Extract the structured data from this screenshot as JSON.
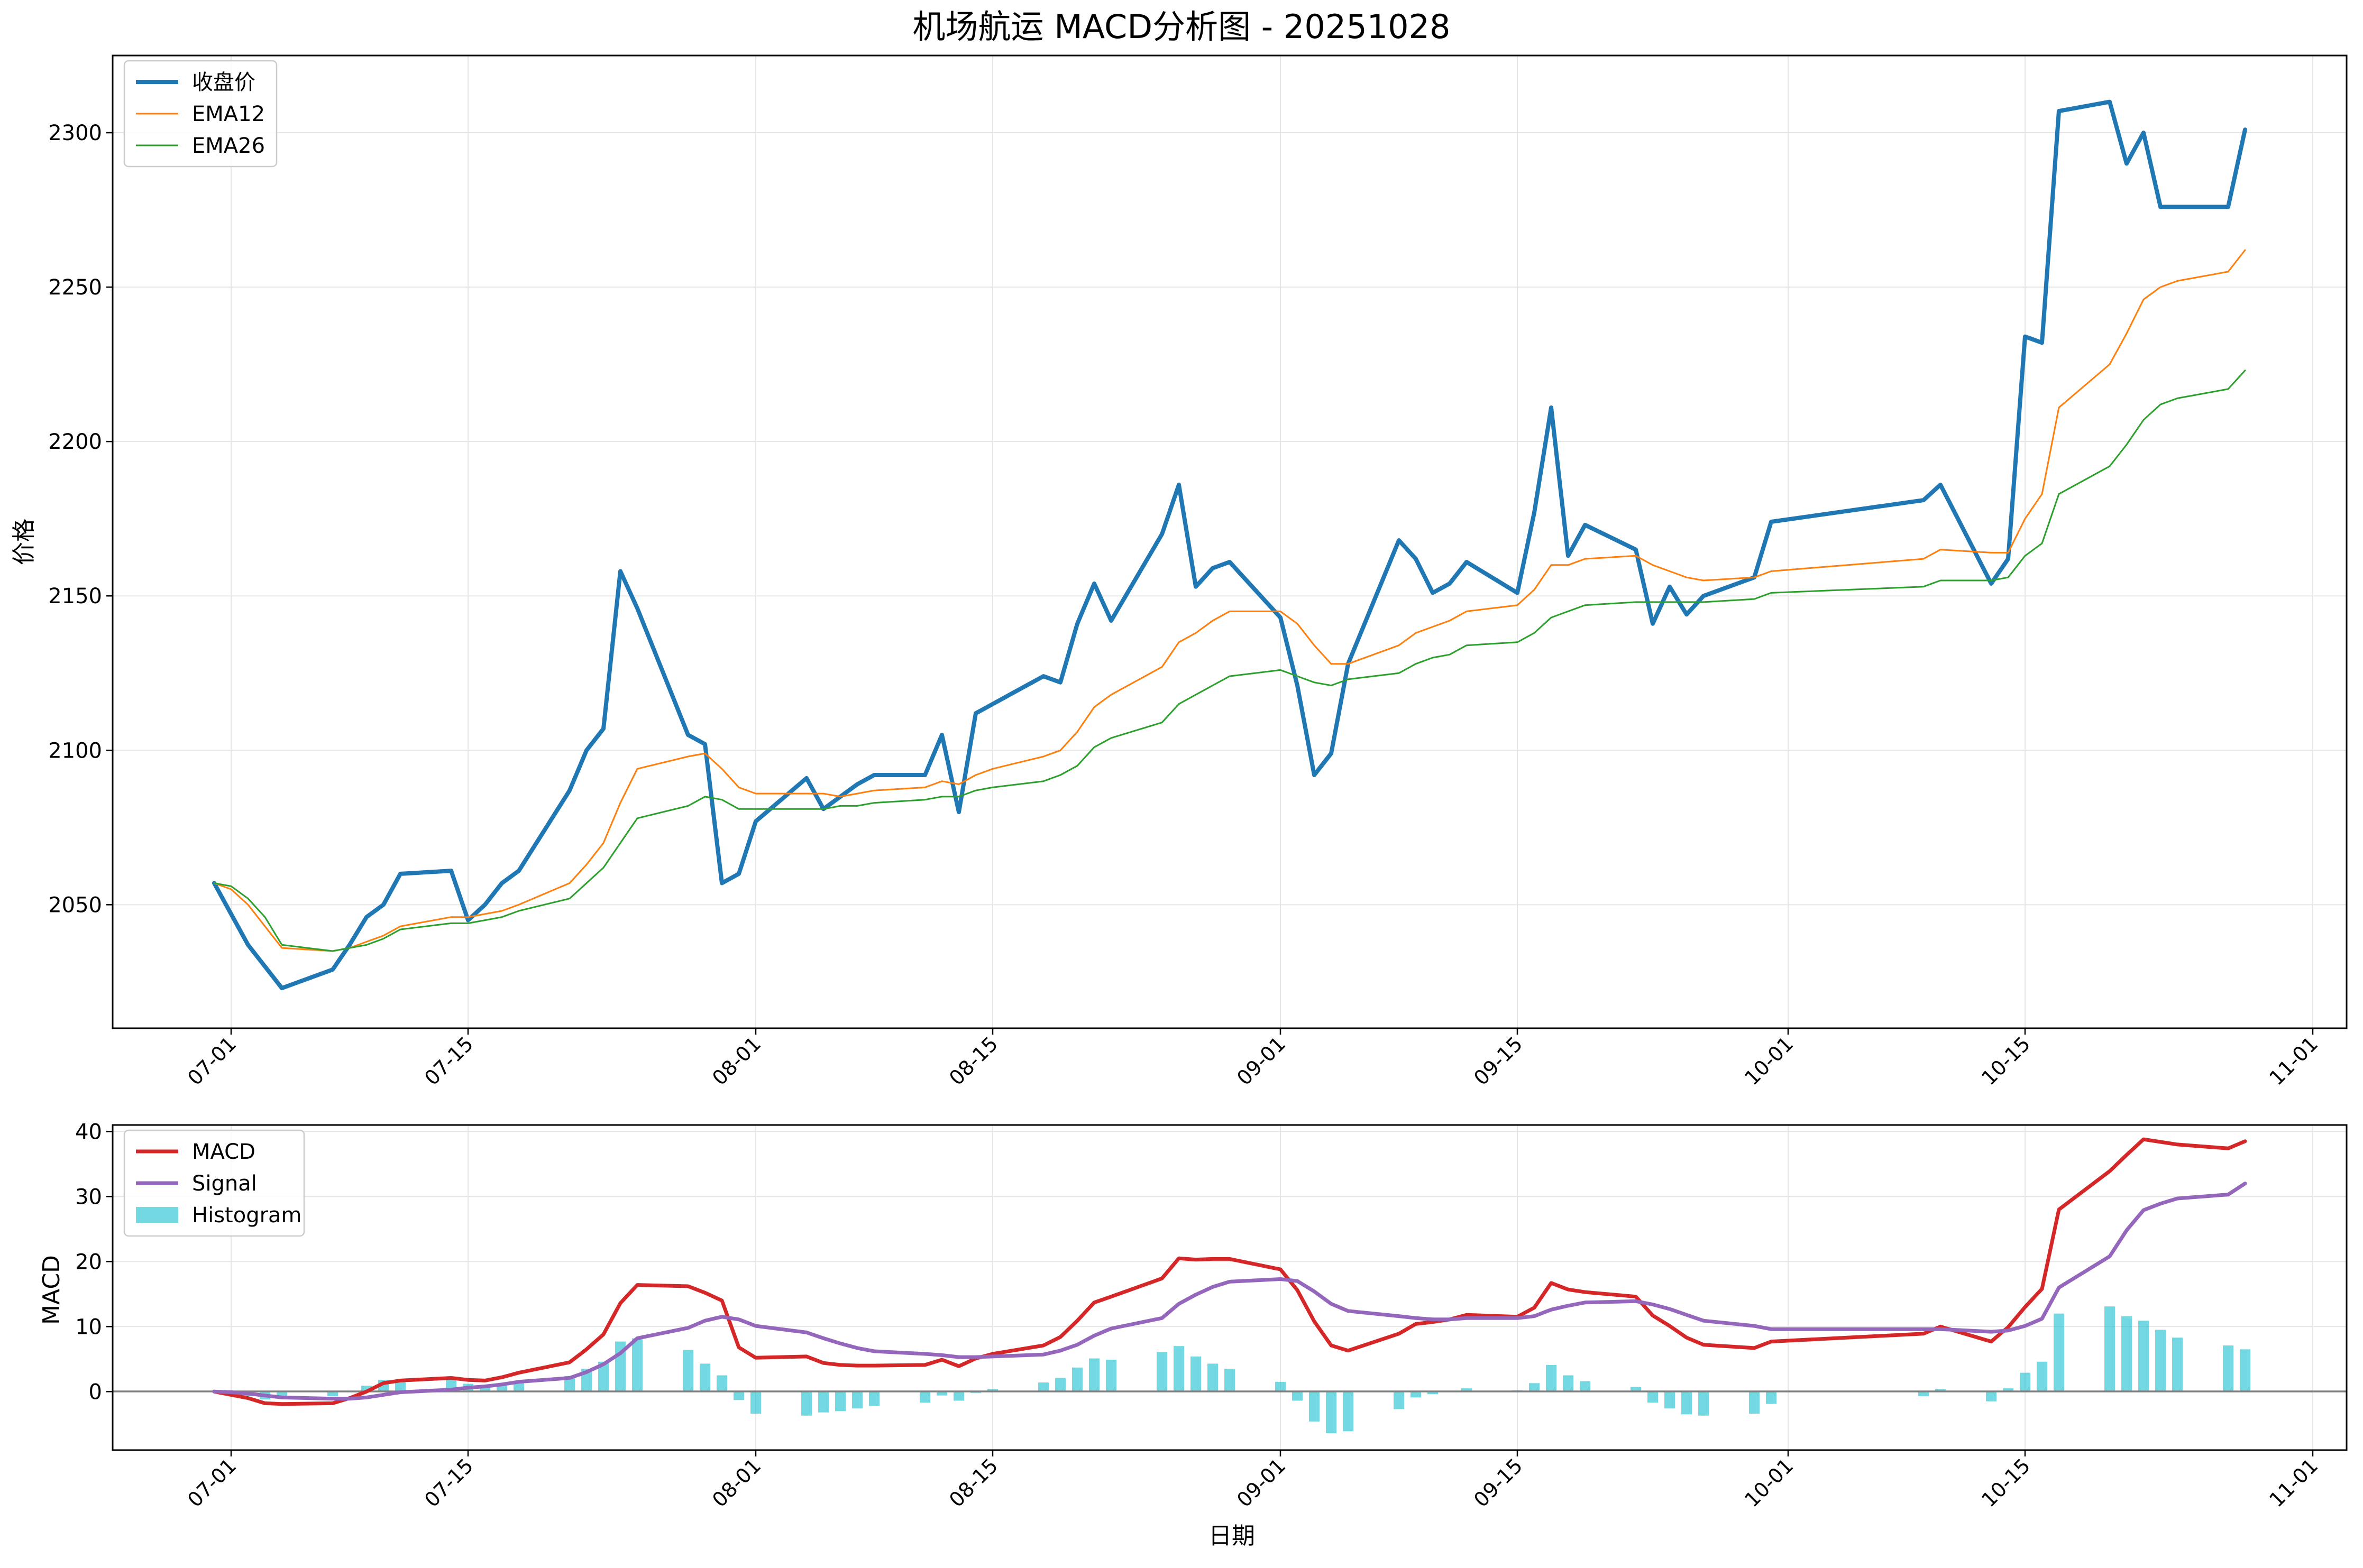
{
  "figure": {
    "title": "机场航运 MACD分析图 - 20251028"
  },
  "chart_data": [
    {
      "type": "line",
      "ylabel": "价格",
      "ylim": [
        2010,
        2325
      ],
      "yticks": [
        2050,
        2100,
        2150,
        2200,
        2250,
        2300
      ],
      "grid": true,
      "legend_position": "top-left",
      "xticks": [
        {
          "date": "2025-07-01",
          "label": "07-01"
        },
        {
          "date": "2025-07-15",
          "label": "07-15"
        },
        {
          "date": "2025-08-01",
          "label": "08-01"
        },
        {
          "date": "2025-08-15",
          "label": "08-15"
        },
        {
          "date": "2025-09-01",
          "label": "09-01"
        },
        {
          "date": "2025-09-15",
          "label": "09-15"
        },
        {
          "date": "2025-10-01",
          "label": "10-01"
        },
        {
          "date": "2025-10-15",
          "label": "10-15"
        },
        {
          "date": "2025-11-01",
          "label": "11-01"
        }
      ],
      "xlim": [
        "2025-06-24",
        "2025-11-03"
      ],
      "x": [
        "2025-06-30",
        "2025-07-01",
        "2025-07-02",
        "2025-07-03",
        "2025-07-04",
        "2025-07-07",
        "2025-07-08",
        "2025-07-09",
        "2025-07-10",
        "2025-07-11",
        "2025-07-14",
        "2025-07-15",
        "2025-07-16",
        "2025-07-17",
        "2025-07-18",
        "2025-07-21",
        "2025-07-22",
        "2025-07-23",
        "2025-07-24",
        "2025-07-25",
        "2025-07-28",
        "2025-07-29",
        "2025-07-30",
        "2025-07-31",
        "2025-08-01",
        "2025-08-04",
        "2025-08-05",
        "2025-08-06",
        "2025-08-07",
        "2025-08-08",
        "2025-08-11",
        "2025-08-12",
        "2025-08-13",
        "2025-08-14",
        "2025-08-15",
        "2025-08-18",
        "2025-08-19",
        "2025-08-20",
        "2025-08-21",
        "2025-08-22",
        "2025-08-25",
        "2025-08-26",
        "2025-08-27",
        "2025-08-28",
        "2025-08-29",
        "2025-09-01",
        "2025-09-02",
        "2025-09-03",
        "2025-09-04",
        "2025-09-05",
        "2025-09-08",
        "2025-09-09",
        "2025-09-10",
        "2025-09-11",
        "2025-09-12",
        "2025-09-15",
        "2025-09-16",
        "2025-09-17",
        "2025-09-18",
        "2025-09-19",
        "2025-09-22",
        "2025-09-23",
        "2025-09-24",
        "2025-09-25",
        "2025-09-26",
        "2025-09-29",
        "2025-09-30",
        "2025-10-09",
        "2025-10-10",
        "2025-10-13",
        "2025-10-14",
        "2025-10-15",
        "2025-10-16",
        "2025-10-17",
        "2025-10-20",
        "2025-10-21",
        "2025-10-22",
        "2025-10-23",
        "2025-10-24",
        "2025-10-27",
        "2025-10-28"
      ],
      "series": [
        {
          "name": "收盘价",
          "color": "#1f77b4",
          "width": 8,
          "values": [
            2057,
            2047,
            2037,
            2030,
            2023,
            2029,
            2037,
            2046,
            2050,
            2060,
            2061,
            2045,
            2050,
            2057,
            2061,
            2087,
            2100,
            2107,
            2158,
            2146,
            2105,
            2102,
            2057,
            2060,
            2077,
            2091,
            2081,
            2085,
            2089,
            2092,
            2092,
            2105,
            2080,
            2112,
            2115,
            2124,
            2122,
            2141,
            2154,
            2142,
            2170,
            2186,
            2153,
            2159,
            2161,
            2143,
            2121,
            2092,
            2099,
            2128,
            2168,
            2162,
            2151,
            2154,
            2161,
            2151,
            2177,
            2211,
            2163,
            2173,
            2165,
            2141,
            2153,
            2144,
            2150,
            2156,
            2174,
            2181,
            2186,
            2154,
            2162,
            2234,
            2232,
            2307,
            2310,
            2290,
            2300,
            2276,
            2276,
            2276,
            2301
          ]
        },
        {
          "name": "EMA12",
          "color": "#ff7f0e",
          "width": 3,
          "values": [
            2057,
            2055,
            2050,
            2043,
            2036,
            2035,
            2036,
            2038,
            2040,
            2043,
            2046,
            2046,
            2047,
            2048,
            2050,
            2057,
            2063,
            2070,
            2083,
            2094,
            2098,
            2099,
            2094,
            2088,
            2086,
            2086,
            2086,
            2085,
            2086,
            2087,
            2088,
            2090,
            2089,
            2092,
            2094,
            2098,
            2100,
            2106,
            2114,
            2118,
            2127,
            2135,
            2138,
            2142,
            2145,
            2145,
            2141,
            2134,
            2128,
            2128,
            2134,
            2138,
            2140,
            2142,
            2145,
            2147,
            2152,
            2160,
            2160,
            2162,
            2163,
            2160,
            2158,
            2156,
            2155,
            2156,
            2158,
            2162,
            2165,
            2164,
            2164,
            2175,
            2183,
            2211,
            2225,
            2235,
            2246,
            2250,
            2252,
            2255,
            2262
          ]
        },
        {
          "name": "EMA26",
          "color": "#2ca02c",
          "width": 3,
          "values": [
            2057,
            2056,
            2052,
            2046,
            2037,
            2035,
            2036,
            2037,
            2039,
            2042,
            2044,
            2044,
            2045,
            2046,
            2048,
            2052,
            2057,
            2062,
            2070,
            2078,
            2082,
            2085,
            2084,
            2081,
            2081,
            2081,
            2081,
            2082,
            2082,
            2083,
            2084,
            2085,
            2085,
            2087,
            2088,
            2090,
            2092,
            2095,
            2101,
            2104,
            2109,
            2115,
            2118,
            2121,
            2124,
            2126,
            2124,
            2122,
            2121,
            2123,
            2125,
            2128,
            2130,
            2131,
            2134,
            2135,
            2138,
            2143,
            2145,
            2147,
            2148,
            2148,
            2148,
            2148,
            2148,
            2149,
            2151,
            2153,
            2155,
            2155,
            2156,
            2163,
            2167,
            2183,
            2192,
            2199,
            2207,
            2212,
            2214,
            2217,
            2223
          ]
        }
      ]
    },
    {
      "type": "line",
      "xlabel": "日期",
      "ylabel": "MACD",
      "ylim": [
        -9,
        41
      ],
      "yticks": [
        0,
        10,
        20,
        30,
        40
      ],
      "grid": true,
      "legend_position": "top-left",
      "zero_line": true,
      "series": [
        {
          "name": "MACD",
          "color": "#d62728",
          "width": 7,
          "values": [
            0,
            -0.5,
            -1,
            -1.8,
            -1.9,
            -1.8,
            -1,
            0,
            1.3,
            1.7,
            2.1,
            1.8,
            1.7,
            2.2,
            2.9,
            4.5,
            6.5,
            8.8,
            13.6,
            16.4,
            16.2,
            15.2,
            14,
            6.8,
            5.2,
            5.4,
            4.4,
            4.1,
            4,
            4,
            4.1,
            4.9,
            3.9,
            5.1,
            5.8,
            7.1,
            8.4,
            10.9,
            13.7,
            14.6,
            17.4,
            20.5,
            20.3,
            20.4,
            20.4,
            18.8,
            15.6,
            10.8,
            7.1,
            6.3,
            8.9,
            10.4,
            10.7,
            11.1,
            11.8,
            11.5,
            12.9,
            16.7,
            15.7,
            15.3,
            14.6,
            11.7,
            10.1,
            8.3,
            7.2,
            6.7,
            7.7,
            8.9,
            10,
            7.7,
            9.9,
            13,
            15.8,
            28,
            33.9,
            36.4,
            38.8,
            38.4,
            38,
            37.4,
            38.5
          ]
        },
        {
          "name": "Signal",
          "color": "#9467bd",
          "width": 7,
          "values": [
            0,
            -0.1,
            -0.3,
            -0.6,
            -0.9,
            -1.1,
            -1.1,
            -0.9,
            -0.5,
            -0.1,
            0.3,
            0.6,
            0.8,
            1.1,
            1.5,
            2.1,
            3,
            4.2,
            5.9,
            8.2,
            9.8,
            10.9,
            11.5,
            11.1,
            10.1,
            9.1,
            8.2,
            7.4,
            6.7,
            6.2,
            5.8,
            5.6,
            5.3,
            5.3,
            5.4,
            5.7,
            6.3,
            7.2,
            8.6,
            9.7,
            11.3,
            13.5,
            14.9,
            16.1,
            16.9,
            17.3,
            17,
            15.4,
            13.5,
            12.4,
            11.6,
            11.3,
            11.1,
            11.1,
            11.3,
            11.3,
            11.6,
            12.6,
            13.2,
            13.7,
            13.9,
            13.4,
            12.7,
            11.8,
            10.9,
            10.1,
            9.6,
            9.6,
            9.6,
            9.2,
            9.4,
            10.1,
            11.2,
            16,
            20.8,
            24.8,
            27.9,
            28.9,
            29.7,
            30.3,
            32
          ]
        }
      ],
      "histogram": {
        "name": "Histogram",
        "color": "#17becf",
        "opacity": 0.6,
        "values": [
          0,
          -0.4,
          -0.7,
          -1.2,
          -1,
          -0.7,
          0.1,
          0.9,
          1.8,
          1.8,
          1.8,
          1.2,
          0.9,
          1.1,
          1.4,
          2.4,
          3.5,
          4.6,
          7.7,
          8.2,
          6.4,
          4.3,
          2.5,
          -1.3,
          -3.4,
          -3.7,
          -3.2,
          -3,
          -2.6,
          -2.2,
          -1.7,
          -0.6,
          -1.4,
          -0.2,
          0.4,
          1.4,
          2.1,
          3.7,
          5.1,
          4.9,
          6.1,
          7,
          5.4,
          4.3,
          3.5,
          1.5,
          -1.4,
          -4.6,
          -6.4,
          -6.1,
          -2.7,
          -0.9,
          -0.4,
          0,
          0.5,
          0.2,
          1.3,
          4.1,
          2.5,
          1.6,
          0.7,
          -1.7,
          -2.6,
          -3.5,
          -3.7,
          -3.4,
          -1.9,
          -0.7,
          0.4,
          -1.5,
          0.5,
          2.9,
          4.6,
          12,
          13.1,
          11.6,
          10.9,
          9.5,
          8.3,
          7.1,
          6.5
        ]
      }
    }
  ]
}
